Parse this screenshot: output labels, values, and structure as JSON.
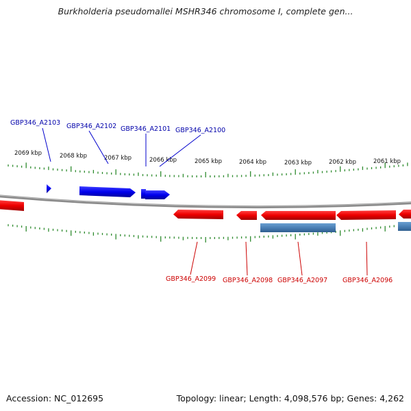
{
  "title": "Burkholderia pseudomallei MSHR346 chromosome I, complete gen...",
  "footer": {
    "accession": "Accession: NC_012695",
    "summary": "Topology: linear; Length: 4,098,576 bp; Genes: 4,262"
  },
  "colors": {
    "forward_gene": "#0000ee",
    "reverse_gene": "#ee0000",
    "rna_feature": "#4a7fb5",
    "backbone": "#8a8a8a",
    "ticks": "#2e8b2e",
    "forward_label": "#0000aa",
    "reverse_label": "#cc0000"
  },
  "scale_labels": [
    "2069 kbp",
    "2068 kbp",
    "2067 kbp",
    "2066 kbp",
    "2065 kbp",
    "2064 kbp",
    "2063 kbp",
    "2062 kbp",
    "2061 kbp"
  ],
  "forward_gene_labels": [
    "GBP346_A2103",
    "GBP346_A2102",
    "GBP346_A2101",
    "GBP346_A2100"
  ],
  "reverse_gene_labels": [
    "GBP346_A2099",
    "GBP346_A2098",
    "GBP346_A2097",
    "GBP346_A2096"
  ]
}
